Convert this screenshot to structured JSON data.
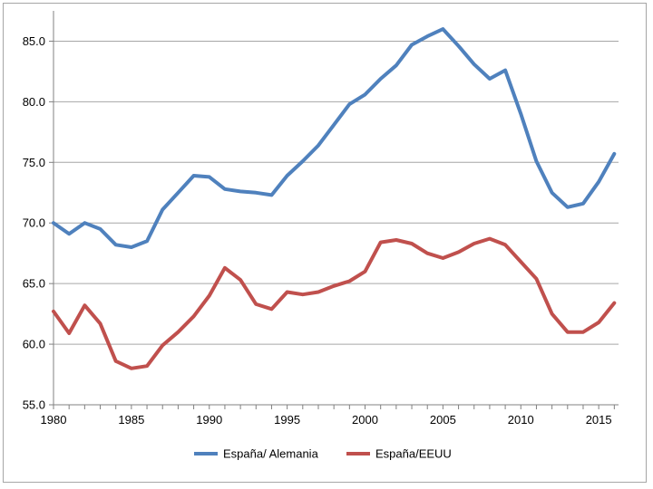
{
  "chart_data": {
    "type": "line",
    "title": "",
    "xlabel": "",
    "ylabel": "",
    "xlim": [
      1980,
      2016
    ],
    "ylim": [
      55.0,
      87.5
    ],
    "x_ticks": [
      1980,
      1985,
      1990,
      1995,
      2000,
      2005,
      2010,
      2015
    ],
    "x_tick_labels": [
      "1980",
      "1985",
      "1990",
      "1995",
      "2000",
      "2005",
      "2010",
      "2015"
    ],
    "y_ticks": [
      55.0,
      60.0,
      65.0,
      70.0,
      75.0,
      80.0,
      85.0
    ],
    "y_tick_labels": [
      "55.0",
      "60.0",
      "65.0",
      "70.0",
      "75.0",
      "80.0",
      "85.0"
    ],
    "grid": "horizontal",
    "legend_position": "bottom",
    "x": [
      1980,
      1981,
      1982,
      1983,
      1984,
      1985,
      1986,
      1987,
      1988,
      1989,
      1990,
      1991,
      1992,
      1993,
      1994,
      1995,
      1996,
      1997,
      1998,
      1999,
      2000,
      2001,
      2002,
      2003,
      2004,
      2005,
      2006,
      2007,
      2008,
      2009,
      2010,
      2011,
      2012,
      2013,
      2014,
      2015,
      2016
    ],
    "series": [
      {
        "name": "España/ Alemania",
        "color": "#4f81bd",
        "values": [
          70.0,
          69.1,
          70.0,
          69.5,
          68.2,
          68.0,
          68.5,
          71.1,
          72.5,
          73.9,
          73.8,
          72.8,
          72.6,
          72.5,
          72.3,
          73.9,
          75.1,
          76.4,
          78.1,
          79.8,
          80.6,
          81.9,
          83.0,
          84.7,
          85.4,
          86.0,
          84.6,
          83.1,
          81.9,
          82.6,
          79.0,
          75.1,
          72.5,
          71.3,
          71.6,
          73.4,
          75.7
        ]
      },
      {
        "name": "España/EEUU",
        "color": "#c0504d",
        "values": [
          62.7,
          60.9,
          63.2,
          61.7,
          58.6,
          58.0,
          58.2,
          59.9,
          61.0,
          62.3,
          64.0,
          66.3,
          65.3,
          63.3,
          62.9,
          64.3,
          64.1,
          64.3,
          64.8,
          65.2,
          66.0,
          68.4,
          68.6,
          68.3,
          67.5,
          67.1,
          67.6,
          68.3,
          68.7,
          68.2,
          66.8,
          65.4,
          62.5,
          61.0,
          61.0,
          61.8,
          63.4
        ]
      }
    ]
  }
}
